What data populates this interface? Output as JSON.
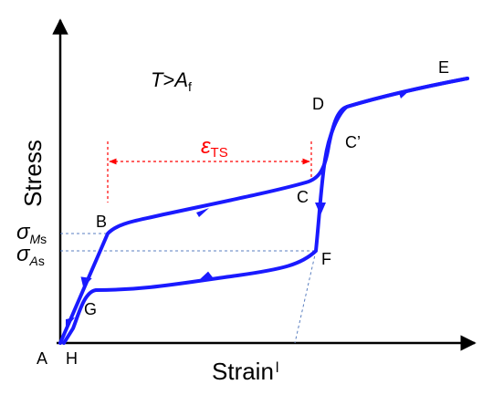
{
  "axes": {
    "x_label": "Strain",
    "y_label": "Stress",
    "x_tick": "l"
  },
  "condition": {
    "T": "T",
    "gt": ">",
    "A": "A",
    "f": "f"
  },
  "stress_labels": {
    "ms": {
      "sigma": "σ",
      "sub_italic": "M",
      "sub": "s"
    },
    "as": {
      "sigma": "σ",
      "sub_italic": "A",
      "sub": "s"
    }
  },
  "strain_label": {
    "epsilon": "ε",
    "sub": "TS"
  },
  "points": {
    "A": "A",
    "H": "H",
    "G": "G",
    "B": "B",
    "C": "C",
    "C_prime": "C’",
    "D": "D",
    "E": "E",
    "F": "F"
  },
  "colors": {
    "curve": "#1a1aff",
    "guide": "#5a7fc0",
    "transformation_strain": "#ff0000",
    "axis": "#000000"
  }
}
